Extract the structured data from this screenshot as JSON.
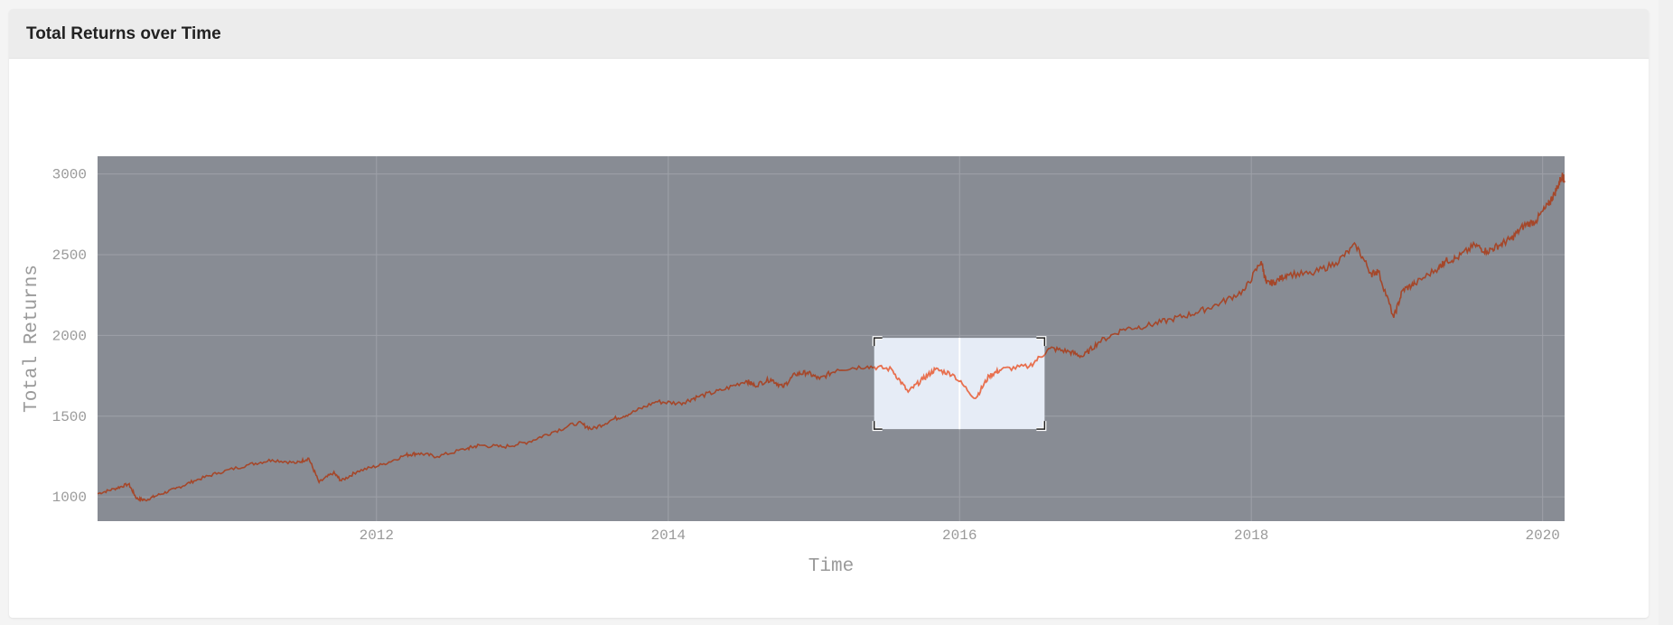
{
  "card": {
    "title": "Total Returns over Time"
  },
  "chart_data": {
    "type": "line",
    "title": "",
    "xlabel": "Time",
    "ylabel": "Total Returns",
    "xlim": [
      "2010-02-01",
      "2020-02-25"
    ],
    "ylim": [
      850,
      3110
    ],
    "x_ticks": [
      "2012",
      "2014",
      "2016",
      "2018",
      "2020"
    ],
    "y_ticks": [
      1000,
      1500,
      2000,
      2500,
      3000
    ],
    "grid": true,
    "legend": "none",
    "colors": {
      "plot_bg": "#888c94",
      "line": "#a5472a",
      "highlight_line": "#e8704f",
      "selection_fill": "#e6ecf6",
      "grid": "#9ea1a8"
    },
    "selection": {
      "x": [
        "2015-06-01",
        "2016-08-01"
      ],
      "y": [
        1420,
        1985
      ]
    },
    "series": [
      {
        "x": [
          "2010-02-01",
          "2010-03-15",
          "2010-04-20",
          "2010-05-10",
          "2010-06-01",
          "2010-07-01",
          "2010-08-15",
          "2010-10-01",
          "2010-12-01",
          "2011-02-15",
          "2011-04-15",
          "2011-06-15",
          "2011-07-15",
          "2011-08-10",
          "2011-09-15",
          "2011-10-05",
          "2011-11-15",
          "2012-01-15",
          "2012-03-15",
          "2012-04-15",
          "2012-06-01",
          "2012-08-15",
          "2012-09-15",
          "2012-11-15",
          "2013-01-15",
          "2013-03-15",
          "2013-05-20",
          "2013-06-25",
          "2013-08-15",
          "2013-10-01",
          "2013-12-01",
          "2014-02-01",
          "2014-03-15",
          "2014-05-15",
          "2014-07-15",
          "2014-08-05",
          "2014-09-15",
          "2014-10-15",
          "2014-11-15",
          "2014-12-15",
          "2015-01-15",
          "2015-03-01",
          "2015-05-15",
          "2015-07-15",
          "2015-08-25",
          "2015-10-01",
          "2015-11-01",
          "2015-12-15",
          "2016-02-10",
          "2016-03-15",
          "2016-04-15",
          "2016-06-24",
          "2016-08-15",
          "2016-10-01",
          "2016-11-05",
          "2016-12-15",
          "2017-02-15",
          "2017-04-15",
          "2017-06-15",
          "2017-08-15",
          "2017-10-15",
          "2017-12-15",
          "2018-01-26",
          "2018-02-08",
          "2018-03-01",
          "2018-04-01",
          "2018-06-01",
          "2018-08-01",
          "2018-09-20",
          "2018-10-29",
          "2018-11-15",
          "2018-12-24",
          "2019-01-15",
          "2019-02-15",
          "2019-04-15",
          "2019-05-01",
          "2019-06-01",
          "2019-07-15",
          "2019-08-15",
          "2019-09-15",
          "2019-10-15",
          "2019-11-15",
          "2019-12-15",
          "2020-01-15",
          "2020-01-31",
          "2020-02-19",
          "2020-02-25"
        ],
        "y": [
          1020,
          1050,
          1080,
          990,
          980,
          1010,
          1050,
          1100,
          1150,
          1200,
          1230,
          1210,
          1240,
          1090,
          1150,
          1100,
          1160,
          1200,
          1260,
          1270,
          1250,
          1300,
          1320,
          1310,
          1340,
          1400,
          1460,
          1420,
          1480,
          1520,
          1590,
          1580,
          1620,
          1660,
          1720,
          1690,
          1730,
          1680,
          1760,
          1770,
          1730,
          1790,
          1810,
          1790,
          1650,
          1730,
          1790,
          1760,
          1610,
          1750,
          1790,
          1810,
          1920,
          1900,
          1870,
          1960,
          2040,
          2060,
          2100,
          2140,
          2200,
          2280,
          2460,
          2320,
          2330,
          2380,
          2380,
          2450,
          2560,
          2380,
          2400,
          2110,
          2280,
          2320,
          2420,
          2460,
          2480,
          2560,
          2520,
          2560,
          2600,
          2680,
          2710,
          2810,
          2880,
          2990,
          2960
        ]
      }
    ]
  }
}
